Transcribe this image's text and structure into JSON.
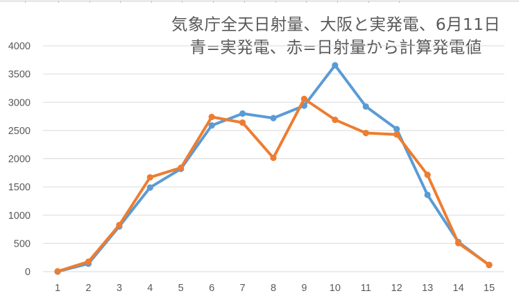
{
  "chart_data": {
    "type": "line",
    "title": "気象庁全天日射量、大阪と実発電、6月11日",
    "subtitle": "青=実発電、赤=日射量から計算発電値",
    "xlabel": "",
    "ylabel": "",
    "categories": [
      "1",
      "2",
      "3",
      "4",
      "5",
      "6",
      "7",
      "8",
      "9",
      "10",
      "11",
      "12",
      "13",
      "14",
      "15"
    ],
    "series": [
      {
        "name": "実発電 (青)",
        "color": "#5B9BD5",
        "values": [
          0,
          140,
          800,
          1490,
          1820,
          2590,
          2800,
          2720,
          2940,
          3655,
          2925,
          2525,
          1360,
          525,
          115
        ]
      },
      {
        "name": "日射量から計算発電値 (赤)",
        "color": "#ED7D31",
        "values": [
          5,
          175,
          825,
          1670,
          1840,
          2740,
          2640,
          2015,
          3060,
          2690,
          2455,
          2430,
          1715,
          505,
          120
        ]
      }
    ],
    "ylim": [
      0,
      4000
    ],
    "yticks": [
      0,
      500,
      1000,
      1500,
      2000,
      2500,
      3000,
      3500,
      4000
    ],
    "grid": true,
    "legend": "none",
    "markers": true
  },
  "colors": {
    "gridline": "#D9D9D9",
    "axis_text": "#595959",
    "title_text": "#595959"
  }
}
